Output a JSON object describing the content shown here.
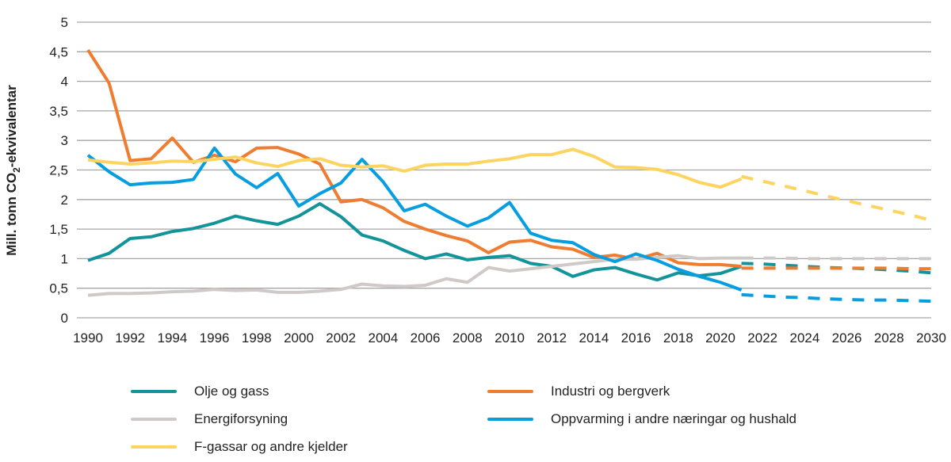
{
  "chart_data": {
    "type": "line",
    "ylabel": {
      "prefix": "Mill. tonn CO",
      "sub": "2",
      "suffix": "-ekvivalentar"
    },
    "ylim": [
      0,
      5
    ],
    "yticks": [
      "0",
      "0,5",
      "1",
      "1,5",
      "2",
      "2,5",
      "3",
      "3,5",
      "4",
      "4,5",
      "5"
    ],
    "xlim": [
      1990,
      2030
    ],
    "xticks": [
      "1990",
      "1992",
      "1994",
      "1996",
      "1998",
      "2000",
      "2002",
      "2004",
      "2006",
      "2008",
      "2010",
      "2012",
      "2014",
      "2016",
      "2018",
      "2020",
      "2022",
      "2024",
      "2026",
      "2028",
      "2030"
    ],
    "grid": true,
    "legend_position": "bottom",
    "historical_x_start": 1990,
    "projection_x_start": 2021,
    "series": [
      {
        "name": "Olje og gass",
        "color": "#13939a",
        "values": [
          0.97,
          1.09,
          1.34,
          1.37,
          1.46,
          1.51,
          1.6,
          1.72,
          1.64,
          1.58,
          1.72,
          1.93,
          1.71,
          1.4,
          1.3,
          1.14,
          1.0,
          1.08,
          0.98,
          1.02,
          1.05,
          0.92,
          0.87,
          0.7,
          0.81,
          0.85,
          0.74,
          0.64,
          0.76,
          0.71,
          0.75,
          0.87
        ],
        "projection": [
          0.92,
          0.91,
          0.89,
          0.87,
          0.85,
          0.84,
          0.83,
          0.81,
          0.79,
          0.76
        ]
      },
      {
        "name": "Industri og bergverk",
        "color": "#ee7d31",
        "values": [
          4.53,
          3.97,
          2.66,
          2.69,
          3.04,
          2.63,
          2.75,
          2.64,
          2.87,
          2.88,
          2.77,
          2.6,
          1.96,
          2.0,
          1.86,
          1.63,
          1.5,
          1.39,
          1.3,
          1.1,
          1.28,
          1.31,
          1.2,
          1.16,
          1.02,
          1.06,
          0.99,
          1.09,
          0.93,
          0.9,
          0.9,
          0.87
        ],
        "projection": [
          0.84,
          0.84,
          0.84,
          0.84,
          0.84,
          0.84,
          0.84,
          0.84,
          0.83,
          0.83
        ]
      },
      {
        "name": "Energiforsyning",
        "color": "#cfcac7",
        "values": [
          0.38,
          0.41,
          0.41,
          0.42,
          0.44,
          0.45,
          0.48,
          0.46,
          0.47,
          0.43,
          0.43,
          0.45,
          0.48,
          0.57,
          0.54,
          0.53,
          0.55,
          0.66,
          0.6,
          0.85,
          0.79,
          0.83,
          0.87,
          0.91,
          0.95,
          0.99,
          0.99,
          1.02,
          1.05,
          1.0,
          1.01,
          1.01
        ],
        "projection": [
          1.01,
          1.01,
          1.01,
          1.0,
          1.0,
          1.0,
          1.0,
          1.0,
          1.0,
          1.0
        ]
      },
      {
        "name": "Oppvarming i andre næringar og hushald",
        "color": "#079ee0",
        "values": [
          2.75,
          2.47,
          2.25,
          2.28,
          2.29,
          2.34,
          2.87,
          2.43,
          2.2,
          2.44,
          1.89,
          2.1,
          2.28,
          2.68,
          2.3,
          1.81,
          1.92,
          1.72,
          1.55,
          1.69,
          1.95,
          1.43,
          1.31,
          1.27,
          1.07,
          0.95,
          1.08,
          0.97,
          0.82,
          0.7,
          0.6,
          0.47
        ],
        "projection": [
          0.39,
          0.37,
          0.35,
          0.34,
          0.32,
          0.31,
          0.3,
          0.3,
          0.29,
          0.28
        ]
      },
      {
        "name": "F-gassar og andre kjelder",
        "color": "#fdd45f",
        "values": [
          2.67,
          2.63,
          2.6,
          2.62,
          2.65,
          2.64,
          2.68,
          2.72,
          2.62,
          2.56,
          2.66,
          2.69,
          2.58,
          2.55,
          2.57,
          2.48,
          2.58,
          2.6,
          2.6,
          2.65,
          2.69,
          2.76,
          2.76,
          2.85,
          2.73,
          2.55,
          2.54,
          2.51,
          2.42,
          2.29,
          2.21,
          2.35
        ],
        "projection": [
          2.39,
          2.31,
          2.23,
          2.15,
          2.06,
          1.98,
          1.9,
          1.82,
          1.74,
          1.65
        ]
      }
    ]
  }
}
